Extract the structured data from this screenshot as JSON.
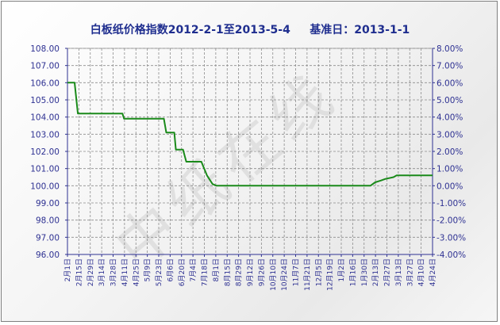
{
  "chart_data": {
    "type": "line",
    "title": "白板纸价格指数2012-2-1至2013-5-4     基准日：2013-1-1",
    "watermark": "中纸在线",
    "line_color": "#1a8a1a",
    "axis_color": "#2e3192",
    "grid": true,
    "yleft": {
      "min": 96.0,
      "max": 108.0,
      "step": 1.0,
      "ticks": [
        "108.00",
        "107.00",
        "106.00",
        "105.00",
        "104.00",
        "103.00",
        "102.00",
        "101.00",
        "100.00",
        "99.00",
        "98.00",
        "97.00",
        "96.00"
      ]
    },
    "yright": {
      "min": -4.0,
      "max": 8.0,
      "step": 1.0,
      "ticks": [
        "8.00%",
        "7.00%",
        "6.00%",
        "5.00%",
        "4.00%",
        "3.00%",
        "2.00%",
        "1.00%",
        "0.00%",
        "-1.00%",
        "-2.00%",
        "-3.00%",
        "-4.00%"
      ]
    },
    "x_ticks": [
      "2月1日",
      "2月15日",
      "2月29日",
      "3月14日",
      "3月28日",
      "4月11日",
      "4月25日",
      "5月9日",
      "5月23日",
      "6月6日",
      "6月20日",
      "7月4日",
      "7月18日",
      "8月1日",
      "8月15日",
      "8月29日",
      "9月12日",
      "9月26日",
      "10月10日",
      "10月24日",
      "11月7日",
      "11月21日",
      "12月5日",
      "12月19日",
      "1月2日",
      "1月16日",
      "1月30日",
      "2月13日",
      "2月27日",
      "3月13日",
      "3月27日",
      "4月10日",
      "4月24日"
    ],
    "x_range": [
      "2012-02-01",
      "2013-05-04"
    ],
    "series": [
      {
        "points": [
          [
            "2012-02-01",
            106.0
          ],
          [
            "2012-02-10",
            106.0
          ],
          [
            "2012-02-14",
            104.2
          ],
          [
            "2012-04-10",
            104.2
          ],
          [
            "2012-04-12",
            103.9
          ],
          [
            "2012-06-01",
            103.9
          ],
          [
            "2012-06-04",
            103.1
          ],
          [
            "2012-06-14",
            103.1
          ],
          [
            "2012-06-16",
            102.1
          ],
          [
            "2012-06-25",
            102.1
          ],
          [
            "2012-06-29",
            101.4
          ],
          [
            "2012-07-18",
            101.4
          ],
          [
            "2012-07-25",
            100.6
          ],
          [
            "2012-08-01",
            100.1
          ],
          [
            "2012-08-06",
            100.0
          ],
          [
            "2013-02-15",
            100.0
          ],
          [
            "2013-02-21",
            100.2
          ],
          [
            "2013-02-28",
            100.3
          ],
          [
            "2013-03-06",
            100.4
          ],
          [
            "2013-03-16",
            100.5
          ],
          [
            "2013-03-20",
            100.6
          ],
          [
            "2013-05-04",
            100.6
          ]
        ]
      }
    ]
  }
}
